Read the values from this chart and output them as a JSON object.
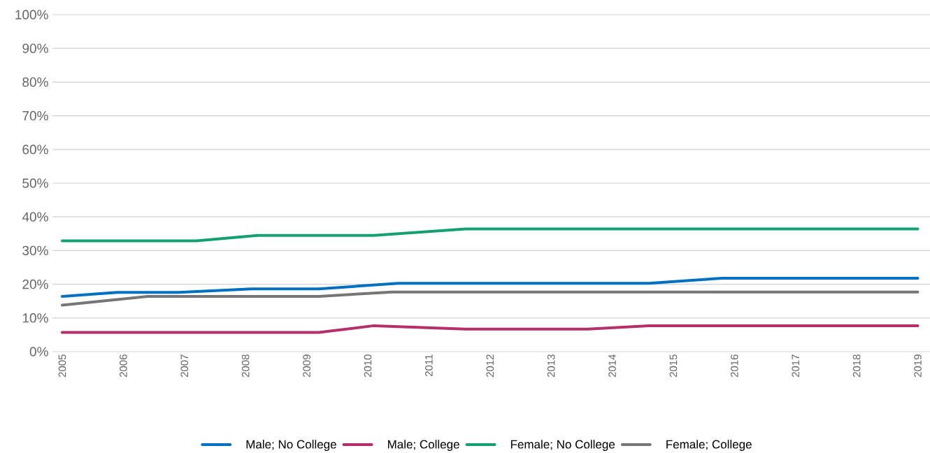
{
  "chart_data": {
    "type": "line",
    "xlim": [
      2004.84,
      2019.2
    ],
    "xticks": [
      2005,
      2006,
      2007,
      2008,
      2009,
      2010,
      2011,
      2012,
      2013,
      2014,
      2015,
      2016,
      2017,
      2018,
      2019
    ],
    "ylim": [
      0,
      100
    ],
    "yticks": [
      {
        "value": 0,
        "label": "0%"
      },
      {
        "value": 10,
        "label": "10%"
      },
      {
        "value": 20,
        "label": "20%"
      },
      {
        "value": 30,
        "label": "30%"
      },
      {
        "value": 40,
        "label": "40%"
      },
      {
        "value": 50,
        "label": "50%"
      },
      {
        "value": 60,
        "label": "60%"
      },
      {
        "value": 70,
        "label": "70%"
      },
      {
        "value": 80,
        "label": "80%"
      },
      {
        "value": 90,
        "label": "90%"
      },
      {
        "value": 100,
        "label": "100%"
      }
    ],
    "grid": "y",
    "legend": "bottom",
    "series": [
      {
        "name": "Male; No College",
        "color": "#0070c0",
        "x": [
          2005,
          2005.9,
          2006.9,
          2008.1,
          2009.2,
          2010.5,
          2014.6,
          2015.8,
          2019
        ],
        "values": [
          16.4,
          17.6,
          17.6,
          18.6,
          18.6,
          20.3,
          20.3,
          21.8,
          21.8
        ]
      },
      {
        "name": "Male; College",
        "color": "#b5306b",
        "x": [
          2005,
          2009.2,
          2010.1,
          2011.6,
          2013.6,
          2014.6,
          2019
        ],
        "values": [
          5.7,
          5.7,
          7.7,
          6.7,
          6.7,
          7.7,
          7.7
        ]
      },
      {
        "name": "Female; No College",
        "color": "#13a073",
        "x": [
          2005,
          2007.2,
          2008.2,
          2010.1,
          2011.6,
          2019
        ],
        "values": [
          32.9,
          32.9,
          34.5,
          34.5,
          36.4,
          36.4
        ]
      },
      {
        "name": "Female; College",
        "color": "#767679",
        "x": [
          2005,
          2006.4,
          2009.2,
          2010.4,
          2019
        ],
        "values": [
          13.8,
          16.4,
          16.4,
          17.7,
          17.7
        ]
      }
    ]
  }
}
